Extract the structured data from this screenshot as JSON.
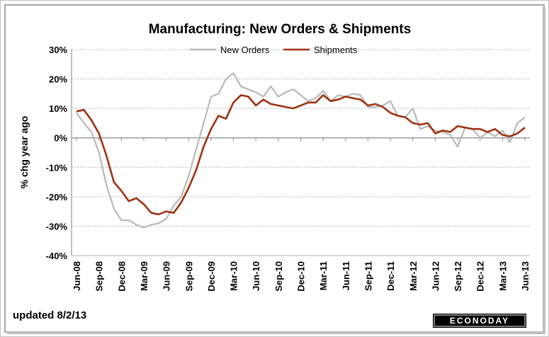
{
  "footer": {
    "updated": "updated 8/2/13",
    "brand": "ECONODAY"
  },
  "chart_data": {
    "type": "line",
    "title": "Manufacturing: New Orders & Shipments",
    "xlabel": "",
    "ylabel": "% chg year ago",
    "ylim": [
      -40,
      30
    ],
    "yticks": [
      "30%",
      "20%",
      "10%",
      "0%",
      "-10%",
      "-20%",
      "-30%",
      "-40%"
    ],
    "ytick_values": [
      30,
      20,
      10,
      0,
      -10,
      -20,
      -30,
      -40
    ],
    "xtick_labels": [
      "Jun-08",
      "Sep-08",
      "Dec-08",
      "Mar-09",
      "Jun-09",
      "Sep-09",
      "Dec-09",
      "Mar-10",
      "Jun-10",
      "Sep-10",
      "Dec-10",
      "Mar-11",
      "Jun-11",
      "Sep-11",
      "Dec-11",
      "Mar-12",
      "Jun-12",
      "Sep-12",
      "Dec-12",
      "Mar-13",
      "Jun-13"
    ],
    "grid": true,
    "legend": "top-center",
    "x": [
      "Jun-08",
      "Jul-08",
      "Aug-08",
      "Sep-08",
      "Oct-08",
      "Nov-08",
      "Dec-08",
      "Jan-09",
      "Feb-09",
      "Mar-09",
      "Apr-09",
      "May-09",
      "Jun-09",
      "Jul-09",
      "Aug-09",
      "Sep-09",
      "Oct-09",
      "Nov-09",
      "Dec-09",
      "Jan-10",
      "Feb-10",
      "Mar-10",
      "Apr-10",
      "May-10",
      "Jun-10",
      "Jul-10",
      "Aug-10",
      "Sep-10",
      "Oct-10",
      "Nov-10",
      "Dec-10",
      "Jan-11",
      "Feb-11",
      "Mar-11",
      "Apr-11",
      "May-11",
      "Jun-11",
      "Jul-11",
      "Aug-11",
      "Sep-11",
      "Oct-11",
      "Nov-11",
      "Dec-11",
      "Jan-12",
      "Feb-12",
      "Mar-12",
      "Apr-12",
      "May-12",
      "Jun-12",
      "Jul-12",
      "Aug-12",
      "Sep-12",
      "Oct-12",
      "Nov-12",
      "Dec-12",
      "Jan-13",
      "Feb-13",
      "Mar-13",
      "Apr-13",
      "May-13",
      "Jun-13"
    ],
    "series": [
      {
        "name": "New Orders",
        "color": "#b9b9b9",
        "values": [
          8.5,
          5,
          2,
          -5,
          -16,
          -24,
          -28,
          -28,
          -29.5,
          -30.5,
          -29.5,
          -29,
          -27.5,
          -23,
          -20,
          -13,
          -4,
          5,
          14,
          15,
          20,
          22,
          17.5,
          16.5,
          15.5,
          14,
          17.5,
          14,
          15.5,
          16.5,
          14.5,
          12.5,
          13.5,
          16,
          12.5,
          14.5,
          14,
          15,
          14.5,
          10.5,
          10.5,
          11,
          12.5,
          7.5,
          7,
          10,
          3,
          4,
          2.5,
          2,
          1,
          -3,
          3.5,
          3,
          0,
          2,
          0.5,
          2.5,
          -1.5,
          5,
          7
        ]
      },
      {
        "name": "Shipments",
        "color": "#9e3210",
        "values": [
          9,
          9.5,
          6,
          1.5,
          -6,
          -15,
          -18,
          -21.5,
          -20.5,
          -22.5,
          -25.5,
          -26,
          -25,
          -25.5,
          -22,
          -17,
          -11,
          -3,
          3,
          7.5,
          6.5,
          12,
          14.5,
          14,
          11,
          13,
          11.5,
          11,
          10.5,
          10,
          11,
          12,
          12,
          14.5,
          12.5,
          13,
          14,
          13.5,
          13,
          11,
          11.5,
          10.5,
          8.5,
          7.5,
          7,
          5,
          4.5,
          5,
          1.5,
          2.5,
          2,
          4,
          3.5,
          3,
          3,
          2,
          3,
          1,
          0.5,
          1.5,
          3.5
        ]
      }
    ]
  }
}
